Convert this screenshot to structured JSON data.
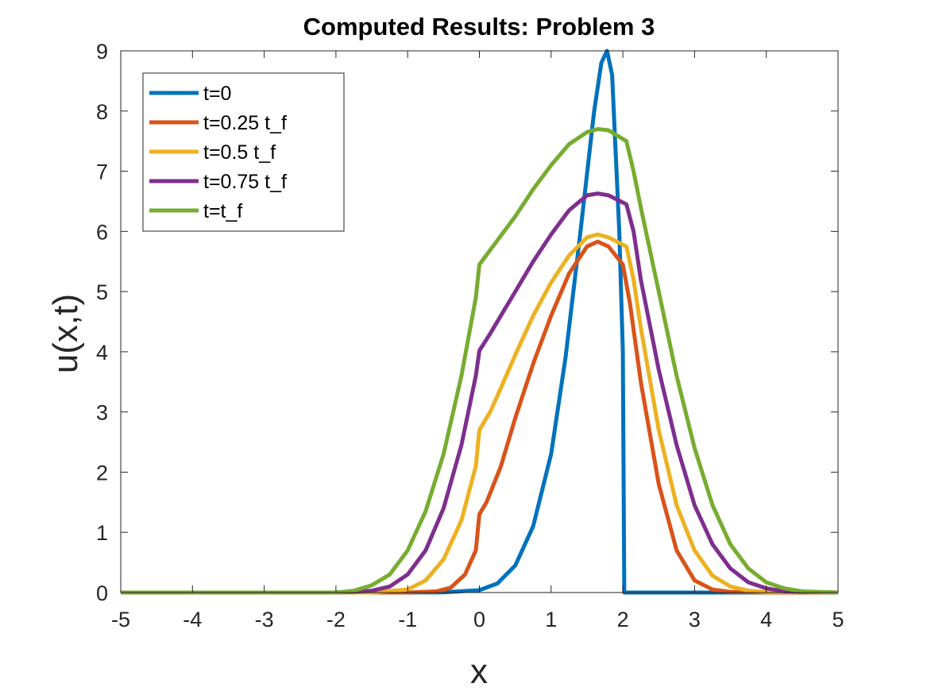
{
  "chart_data": {
    "type": "line",
    "title": "Computed Results: Problem 3",
    "xlabel": "x",
    "ylabel": "u(x,t)",
    "xlim": [
      -5,
      5
    ],
    "ylim": [
      0,
      9
    ],
    "xticks": [
      -5,
      -4,
      -3,
      -2,
      -1,
      0,
      1,
      2,
      3,
      4,
      5
    ],
    "yticks": [
      0,
      1,
      2,
      3,
      4,
      5,
      6,
      7,
      8,
      9
    ],
    "grid": false,
    "legend_position": "top-left",
    "series": [
      {
        "name": "t=0",
        "color": "#0072BD",
        "points": [
          [
            -5,
            0
          ],
          [
            -1,
            0
          ],
          [
            -0.5,
            0.003
          ],
          [
            0,
            0.04
          ],
          [
            0.25,
            0.15
          ],
          [
            0.5,
            0.45
          ],
          [
            0.75,
            1.1
          ],
          [
            1,
            2.3
          ],
          [
            1.2,
            3.9
          ],
          [
            1.4,
            5.9
          ],
          [
            1.6,
            8.0
          ],
          [
            1.7,
            8.8
          ],
          [
            1.78,
            9.0
          ],
          [
            1.85,
            8.6
          ],
          [
            1.95,
            6.0
          ],
          [
            2.0,
            4.0
          ],
          [
            2.02,
            0
          ],
          [
            5,
            0
          ]
        ]
      },
      {
        "name": "t=0.25 t_f",
        "color": "#D95319",
        "points": [
          [
            -5,
            0
          ],
          [
            -1,
            0
          ],
          [
            -0.6,
            0.02
          ],
          [
            -0.4,
            0.08
          ],
          [
            -0.2,
            0.3
          ],
          [
            -0.05,
            0.7
          ],
          [
            0,
            1.3
          ],
          [
            0.1,
            1.5
          ],
          [
            0.3,
            2.1
          ],
          [
            0.5,
            2.9
          ],
          [
            0.75,
            3.8
          ],
          [
            1,
            4.6
          ],
          [
            1.25,
            5.3
          ],
          [
            1.5,
            5.75
          ],
          [
            1.65,
            5.83
          ],
          [
            1.8,
            5.75
          ],
          [
            2.0,
            5.45
          ],
          [
            2.1,
            4.8
          ],
          [
            2.25,
            3.5
          ],
          [
            2.5,
            1.8
          ],
          [
            2.75,
            0.7
          ],
          [
            3.0,
            0.2
          ],
          [
            3.25,
            0.05
          ],
          [
            3.5,
            0.01
          ],
          [
            4,
            0
          ],
          [
            5,
            0
          ]
        ]
      },
      {
        "name": "t=0.5 t_f",
        "color": "#EDB120",
        "points": [
          [
            -5,
            0
          ],
          [
            -1.5,
            0
          ],
          [
            -1,
            0.05
          ],
          [
            -0.75,
            0.2
          ],
          [
            -0.5,
            0.55
          ],
          [
            -0.25,
            1.2
          ],
          [
            -0.05,
            2.1
          ],
          [
            0,
            2.7
          ],
          [
            0.15,
            3.0
          ],
          [
            0.3,
            3.4
          ],
          [
            0.5,
            3.95
          ],
          [
            0.75,
            4.6
          ],
          [
            1,
            5.15
          ],
          [
            1.25,
            5.6
          ],
          [
            1.5,
            5.9
          ],
          [
            1.65,
            5.95
          ],
          [
            1.8,
            5.9
          ],
          [
            2.05,
            5.75
          ],
          [
            2.15,
            5.2
          ],
          [
            2.25,
            4.4
          ],
          [
            2.5,
            2.7
          ],
          [
            2.75,
            1.45
          ],
          [
            3.0,
            0.7
          ],
          [
            3.25,
            0.28
          ],
          [
            3.5,
            0.1
          ],
          [
            3.75,
            0.03
          ],
          [
            4,
            0.01
          ],
          [
            5,
            0
          ]
        ]
      },
      {
        "name": "t=0.75 t_f",
        "color": "#7E2F8E",
        "points": [
          [
            -5,
            0
          ],
          [
            -2,
            0
          ],
          [
            -1.5,
            0.03
          ],
          [
            -1.25,
            0.1
          ],
          [
            -1,
            0.3
          ],
          [
            -0.75,
            0.7
          ],
          [
            -0.5,
            1.4
          ],
          [
            -0.25,
            2.45
          ],
          [
            -0.05,
            3.6
          ],
          [
            0,
            4.02
          ],
          [
            0.15,
            4.3
          ],
          [
            0.35,
            4.7
          ],
          [
            0.5,
            5.0
          ],
          [
            0.75,
            5.5
          ],
          [
            1,
            5.95
          ],
          [
            1.25,
            6.35
          ],
          [
            1.5,
            6.6
          ],
          [
            1.65,
            6.63
          ],
          [
            1.8,
            6.6
          ],
          [
            2.05,
            6.45
          ],
          [
            2.15,
            6.0
          ],
          [
            2.25,
            5.2
          ],
          [
            2.5,
            3.7
          ],
          [
            2.75,
            2.45
          ],
          [
            3.0,
            1.45
          ],
          [
            3.25,
            0.8
          ],
          [
            3.5,
            0.4
          ],
          [
            3.75,
            0.17
          ],
          [
            4,
            0.07
          ],
          [
            4.25,
            0.02
          ],
          [
            4.5,
            0.01
          ],
          [
            5,
            0
          ]
        ]
      },
      {
        "name": "t=t_f",
        "color": "#77AC30",
        "points": [
          [
            -5,
            0
          ],
          [
            -2,
            0
          ],
          [
            -1.75,
            0.03
          ],
          [
            -1.5,
            0.12
          ],
          [
            -1.25,
            0.3
          ],
          [
            -1,
            0.7
          ],
          [
            -0.75,
            1.35
          ],
          [
            -0.5,
            2.3
          ],
          [
            -0.25,
            3.6
          ],
          [
            -0.05,
            4.9
          ],
          [
            0,
            5.45
          ],
          [
            0.25,
            5.85
          ],
          [
            0.5,
            6.25
          ],
          [
            0.75,
            6.7
          ],
          [
            1,
            7.1
          ],
          [
            1.25,
            7.45
          ],
          [
            1.5,
            7.65
          ],
          [
            1.65,
            7.7
          ],
          [
            1.8,
            7.68
          ],
          [
            2.05,
            7.5
          ],
          [
            2.15,
            7.0
          ],
          [
            2.25,
            6.4
          ],
          [
            2.5,
            5.0
          ],
          [
            2.75,
            3.6
          ],
          [
            3.0,
            2.4
          ],
          [
            3.25,
            1.45
          ],
          [
            3.5,
            0.8
          ],
          [
            3.75,
            0.4
          ],
          [
            4,
            0.17
          ],
          [
            4.25,
            0.07
          ],
          [
            4.5,
            0.02
          ],
          [
            4.75,
            0.01
          ],
          [
            5,
            0
          ]
        ]
      }
    ]
  }
}
